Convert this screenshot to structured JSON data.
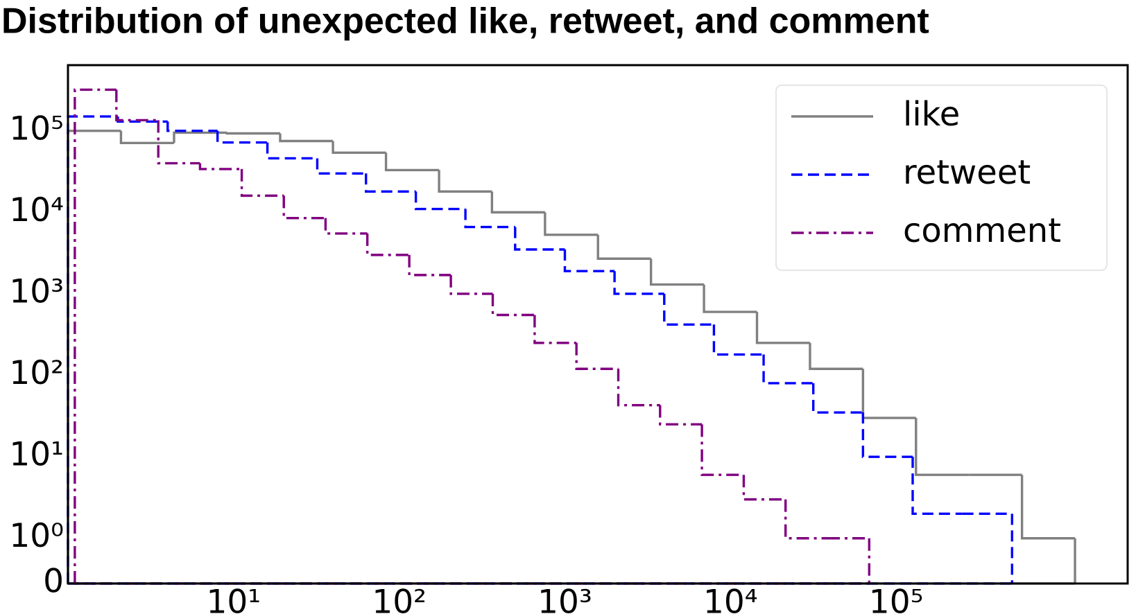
{
  "chart_data": {
    "type": "step-histogram",
    "title": "Distribution of unexpected like, retweet, and comment",
    "xscale": "log",
    "yscale": "symlog",
    "xlim": [
      1,
      2500000
    ],
    "ylim": [
      0,
      640000
    ],
    "xticks": [
      {
        "value": 10,
        "label": "10¹"
      },
      {
        "value": 100,
        "label": "10²"
      },
      {
        "value": 1000,
        "label": "10³"
      },
      {
        "value": 10000,
        "label": "10⁴"
      },
      {
        "value": 100000,
        "label": "10⁵"
      }
    ],
    "yticks": [
      0,
      {
        "value": 1,
        "label": "10⁰"
      },
      {
        "value": 10,
        "label": "10¹"
      },
      {
        "value": 100,
        "label": "10²"
      },
      {
        "value": 1000,
        "label": "10³"
      },
      {
        "value": 10000,
        "label": "10⁴"
      },
      {
        "value": 100000,
        "label": "10⁵"
      }
    ],
    "legend": "upper right",
    "series": [
      {
        "name": "like",
        "color": "#808080",
        "dash": "solid",
        "bins": [
          1,
          2.09,
          4.37,
          9.12,
          19.1,
          39.8,
          83.2,
          174,
          363,
          759,
          1585,
          3311,
          6918,
          14454,
          30200,
          63096,
          131826,
          275423,
          575440,
          1202264
        ],
        "values": [
          100000,
          71000,
          95000,
          93000,
          75000,
          54000,
          33000,
          18000,
          10000,
          5300,
          2700,
          1300,
          600,
          250,
          120,
          30,
          6,
          6,
          1
        ]
      },
      {
        "name": "retweet",
        "color": "#0000ff",
        "dash": "dashed",
        "bins": [
          1,
          2,
          4,
          8,
          16,
          32,
          63,
          126,
          251,
          501,
          1000,
          1995,
          3981,
          7943,
          15849,
          31623,
          63096,
          125893,
          251189,
          501187
        ],
        "values": [
          150000,
          130000,
          100000,
          72000,
          46000,
          30000,
          18000,
          11000,
          6600,
          3500,
          1900,
          1000,
          420,
          180,
          80,
          35,
          10,
          2,
          2
        ]
      },
      {
        "name": "comment",
        "color": "#800080",
        "dash": "dashdot",
        "bins": [
          1.1,
          1.96,
          3.51,
          6.27,
          11.2,
          20.1,
          35.9,
          64.2,
          115,
          205,
          367,
          657,
          1175,
          2102,
          3758,
          6722,
          12023,
          21501,
          38459,
          68786
        ],
        "values": [
          320000,
          135000,
          40000,
          34000,
          16000,
          8500,
          5500,
          3000,
          1700,
          1000,
          550,
          250,
          120,
          43,
          25,
          6,
          3,
          1,
          1
        ]
      }
    ]
  }
}
